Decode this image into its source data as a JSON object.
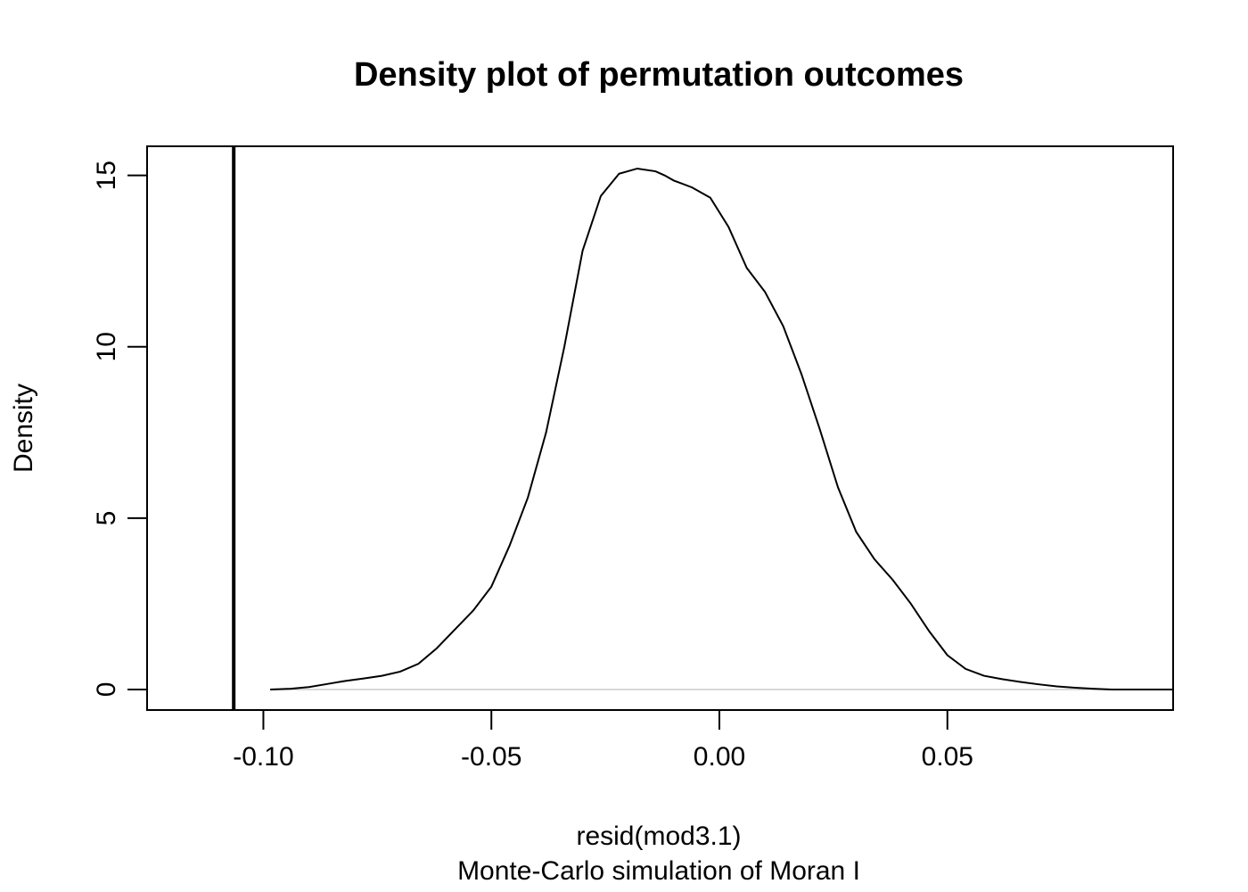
{
  "chart_data": {
    "type": "line",
    "title": "Density plot of permutation outcomes",
    "xlabel": "resid(mod3.1)",
    "sub": "Monte-Carlo simulation of Moran I",
    "ylabel": "Density",
    "xlim": [
      -0.1255,
      0.0995
    ],
    "ylim": [
      -0.6,
      15.85
    ],
    "x_ticks": [
      -0.1,
      -0.05,
      0.0,
      0.05
    ],
    "x_tick_labels": [
      "-0.10",
      "-0.05",
      "0.00",
      "0.05"
    ],
    "y_ticks": [
      0,
      5,
      10,
      15
    ],
    "y_tick_labels": [
      "0",
      "5",
      "10",
      "15"
    ],
    "observed_statistic": -0.1065,
    "zero_baseline": 0,
    "grid": false,
    "legend": "none",
    "colors": {
      "density_line": "#000000",
      "observed_line": "#000000",
      "baseline": "#cccccc"
    },
    "series": [
      {
        "x": [
          -0.0985,
          -0.094,
          -0.09,
          -0.086,
          -0.082,
          -0.078,
          -0.074,
          -0.07,
          -0.066,
          -0.062,
          -0.058,
          -0.054,
          -0.05,
          -0.046,
          -0.042,
          -0.038,
          -0.034,
          -0.03,
          -0.026,
          -0.022,
          -0.018,
          -0.014,
          -0.012,
          -0.01,
          -0.006,
          -0.002,
          0.002,
          0.006,
          0.01,
          0.014,
          0.018,
          0.022,
          0.026,
          0.03,
          0.034,
          0.038,
          0.042,
          0.046,
          0.05,
          0.054,
          0.058,
          0.062,
          0.066,
          0.07,
          0.074,
          0.078,
          0.082,
          0.086,
          0.09,
          0.094,
          0.0995
        ],
        "values": [
          0.0,
          0.02,
          0.07,
          0.16,
          0.25,
          0.32,
          0.4,
          0.52,
          0.75,
          1.2,
          1.75,
          2.3,
          3.0,
          4.2,
          5.6,
          7.5,
          10.0,
          12.8,
          14.4,
          15.05,
          15.2,
          15.12,
          15.0,
          14.85,
          14.65,
          14.35,
          13.5,
          12.3,
          11.6,
          10.6,
          9.2,
          7.6,
          5.9,
          4.6,
          3.8,
          3.2,
          2.5,
          1.7,
          1.0,
          0.6,
          0.4,
          0.3,
          0.22,
          0.15,
          0.09,
          0.05,
          0.02,
          0.0,
          0.0,
          0.0,
          0.0
        ]
      }
    ]
  }
}
